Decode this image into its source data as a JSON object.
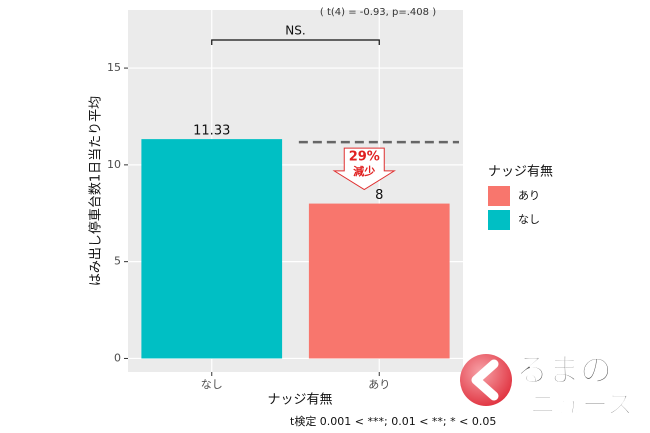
{
  "chart_data": {
    "type": "bar",
    "subtitle": "( t(4) = -0.93, p=.408 )",
    "annotation": "NS.",
    "change_label": "29%",
    "change_text": "減少",
    "categories": [
      "なし",
      "あり"
    ],
    "values": [
      11.33,
      8
    ],
    "colors": [
      "#00BFC4",
      "#F8766D"
    ],
    "xlabel": "ナッジ有無",
    "ylabel": "はみ出し停車台数1日当たり平均",
    "ylim": [
      -0.7,
      18
    ],
    "yticks": [
      0,
      5,
      10,
      15
    ],
    "grid": true,
    "legend": {
      "title": "ナッジ有無",
      "position": "right",
      "entries": [
        {
          "name": "あり",
          "color": "#F8766D"
        },
        {
          "name": "なし",
          "color": "#00BFC4"
        }
      ]
    },
    "footnote": "t検定 0.001 < ***; 0.01 < **; * < 0.05"
  },
  "watermark": {
    "line1": "るまの",
    "line2": "ニュース"
  }
}
